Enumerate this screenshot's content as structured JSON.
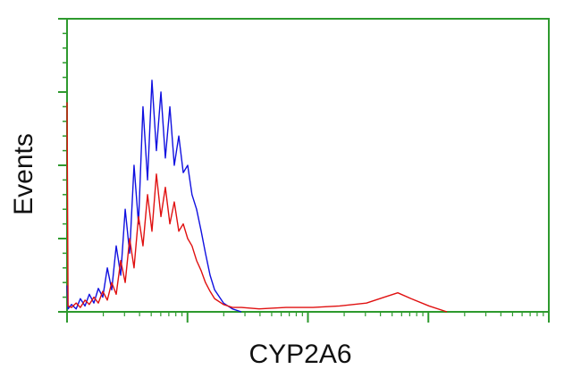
{
  "chart_data": {
    "type": "line",
    "x_label": "CYP2A6",
    "y_label": "Events",
    "xlog": true,
    "x": [
      1,
      1.02,
      1.09,
      1.19,
      1.29,
      1.41,
      1.53,
      1.67,
      1.82,
      1.98,
      2.16,
      2.35,
      2.56,
      2.79,
      3.04,
      3.31,
      3.6,
      3.92,
      4.27,
      4.66,
      5.07,
      5.52,
      6.02,
      6.55,
      7.14,
      7.77,
      8.47,
      9.22,
      10.04,
      10.9,
      11.9,
      13.0,
      14.1,
      15.4,
      16.8,
      19.9,
      23.6,
      28.0,
      39.4,
      65.8,
      110,
      183,
      306,
      431,
      557,
      719,
      1013,
      1426
    ],
    "series": [
      {
        "color": "#1010e0",
        "values": [
          18,
          2,
          5,
          2,
          9,
          4,
          12,
          6,
          16,
          10,
          30,
          15,
          45,
          25,
          70,
          40,
          100,
          60,
          140,
          90,
          158,
          110,
          150,
          105,
          140,
          100,
          120,
          95,
          100,
          80,
          70,
          55,
          40,
          25,
          15,
          6,
          2,
          0,
          null,
          null,
          null,
          null,
          null,
          null,
          null,
          null,
          null,
          null
        ]
      },
      {
        "color": "#e01010",
        "values": [
          143,
          4,
          3,
          6,
          3,
          8,
          5,
          10,
          6,
          14,
          8,
          20,
          12,
          35,
          20,
          50,
          30,
          65,
          45,
          80,
          55,
          94,
          65,
          85,
          60,
          75,
          55,
          60,
          50,
          45,
          35,
          28,
          20,
          14,
          9,
          5,
          3,
          3,
          2,
          3,
          3,
          4,
          6,
          10,
          13,
          9,
          4,
          0
        ]
      }
    ],
    "xlim": [
      1,
      10000
    ],
    "xticks": [
      1,
      10,
      100,
      1000,
      10000
    ],
    "ylim": [
      0,
      200
    ],
    "yticks": [
      0,
      50,
      100,
      150,
      200
    ],
    "frame_color": "#2e9a2e"
  }
}
